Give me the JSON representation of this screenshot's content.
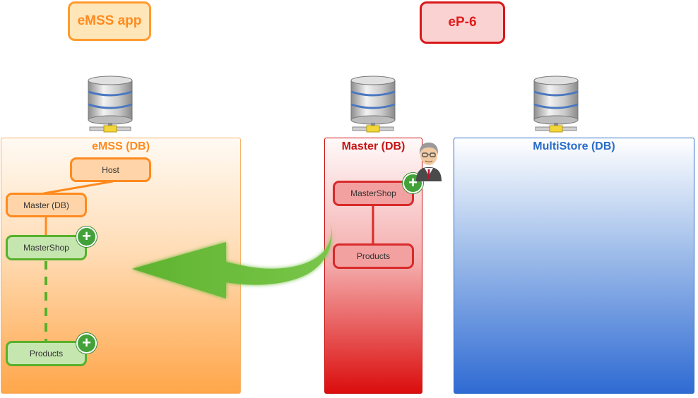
{
  "labels": {
    "emss_app": "eMSS app",
    "ep6": "eP-6"
  },
  "zones": {
    "emss": {
      "title": "eMSS (DB)"
    },
    "master": {
      "title": "Master (DB)"
    },
    "multistore": {
      "title": "MultiStore (DB)"
    }
  },
  "emss_nodes": {
    "host": "Host",
    "master": "Master (DB)",
    "mastershop": "MasterShop",
    "products": "Products"
  },
  "master_nodes": {
    "mastershop": "MasterShop",
    "products": "Products"
  },
  "icons": {
    "database": "database-server-icon",
    "plus": "plus-circle-icon",
    "user": "user-avatar-icon",
    "arrow": "curved-arrow-icon"
  },
  "colors": {
    "orange": "#ff8a1e",
    "red": "#d81818",
    "blue": "#2a6cc8",
    "green": "#58b02a"
  }
}
